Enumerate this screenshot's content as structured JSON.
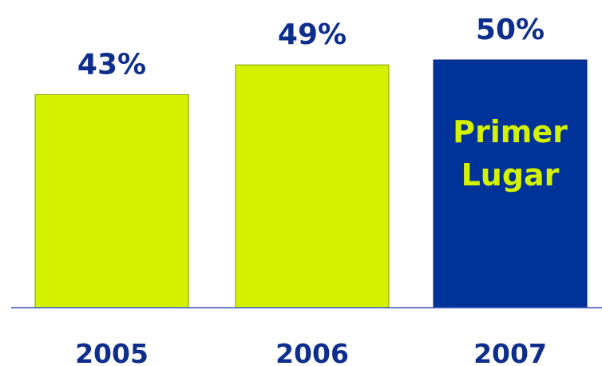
{
  "chart_data": {
    "type": "bar",
    "categories": [
      "2005",
      "2006",
      "2007"
    ],
    "values": [
      43,
      49,
      50
    ],
    "value_labels": [
      "43%",
      "49%",
      "50%"
    ],
    "unit": "%",
    "ylim": [
      0,
      55
    ],
    "grid": false,
    "legend": "none",
    "colors": {
      "bar": "#d4f200",
      "highlight_bar": "#003399",
      "label_text": "#0d2e8c",
      "highlight_text": "#d4f200",
      "baseline": "#3355bb"
    },
    "highlight_index": 2,
    "annotation": {
      "lines": [
        "Primer",
        "Lugar"
      ]
    }
  }
}
